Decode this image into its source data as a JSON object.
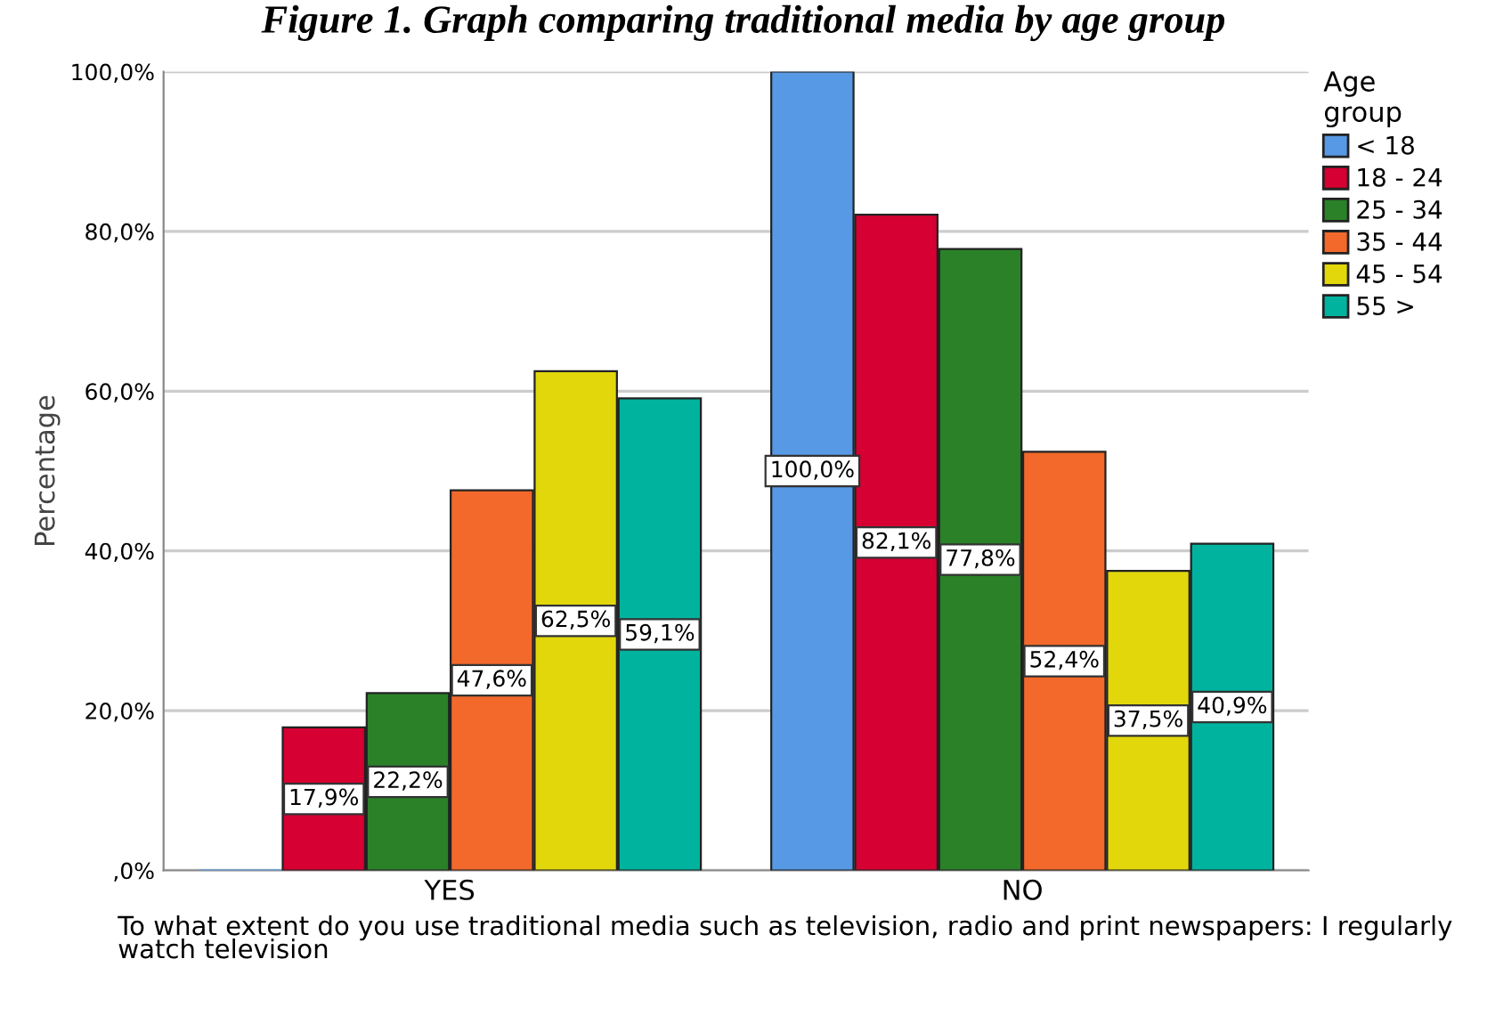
{
  "chart_data": {
    "type": "bar",
    "title": "Figure 1. Graph comparing traditional media by age group",
    "xlabel": "To what extent do you use traditional media such as television, radio and print newspapers: I regularly watch television",
    "ylabel": "Percentage",
    "legend_title": "Age\ngroup",
    "categories": [
      "YES",
      "NO"
    ],
    "series": [
      {
        "name": "< 18",
        "color": "#5799e4",
        "values": [
          0,
          100.0
        ],
        "value_labels": [
          null,
          "100,0%"
        ]
      },
      {
        "name": "18 - 24",
        "color": "#d60032",
        "values": [
          17.9,
          82.1
        ],
        "value_labels": [
          "17,9%",
          "82,1%"
        ]
      },
      {
        "name": "25 - 34",
        "color": "#2a8128",
        "values": [
          22.2,
          77.8
        ],
        "value_labels": [
          "22,2%",
          "77,8%"
        ]
      },
      {
        "name": "35 - 44",
        "color": "#f2692b",
        "values": [
          47.6,
          52.4
        ],
        "value_labels": [
          "47,6%",
          "52,4%"
        ]
      },
      {
        "name": "45 - 54",
        "color": "#e2d70b",
        "values": [
          62.5,
          37.5
        ],
        "value_labels": [
          "62,5%",
          "37,5%"
        ]
      },
      {
        "name": "55 >",
        "color": "#00b39e",
        "values": [
          59.1,
          40.9
        ],
        "value_labels": [
          "59,1%",
          "40,9%"
        ]
      }
    ],
    "ylim": [
      0,
      100
    ],
    "yticks": [
      {
        "value": 0,
        "label": ",0%"
      },
      {
        "value": 20,
        "label": "20,0%"
      },
      {
        "value": 40,
        "label": "40,0%"
      },
      {
        "value": 60,
        "label": "60,0%"
      },
      {
        "value": 80,
        "label": "80,0%"
      },
      {
        "value": 100,
        "label": "100,0%"
      }
    ],
    "grid": "y",
    "legend": "right"
  }
}
